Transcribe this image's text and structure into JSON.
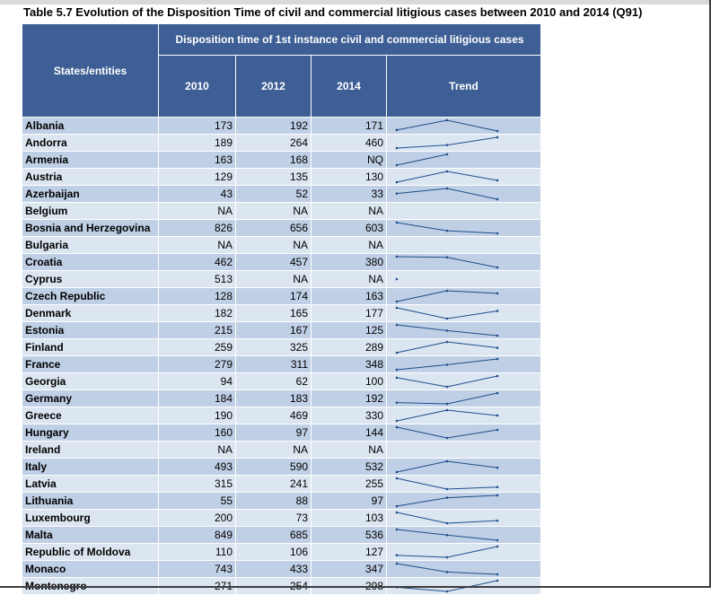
{
  "title": "Table 5.7 Evolution of the Disposition Time of civil and commercial litigious cases between 2010 and 2014 (Q91)",
  "header": {
    "states": "States/entities",
    "group": "Disposition time of 1st instance civil and commercial litigious cases",
    "years": [
      "2010",
      "2012",
      "2014"
    ],
    "trend": "Trend"
  },
  "colors": {
    "header_bg": "#3d5f95",
    "row_dark": "#bfcfe5",
    "row_light": "#dce6f1",
    "sparkline": "#1f4e8c"
  },
  "rows": [
    {
      "name": "Albania",
      "v2010": "173",
      "v2012": "192",
      "v2014": "171"
    },
    {
      "name": "Andorra",
      "v2010": "189",
      "v2012": "264",
      "v2014": "460"
    },
    {
      "name": "Armenia",
      "v2010": "163",
      "v2012": "168",
      "v2014": "NQ"
    },
    {
      "name": "Austria",
      "v2010": "129",
      "v2012": "135",
      "v2014": "130"
    },
    {
      "name": "Azerbaijan",
      "v2010": "43",
      "v2012": "52",
      "v2014": "33"
    },
    {
      "name": "Belgium",
      "v2010": "NA",
      "v2012": "NA",
      "v2014": "NA"
    },
    {
      "name": "Bosnia and Herzegovina",
      "v2010": "826",
      "v2012": "656",
      "v2014": "603"
    },
    {
      "name": "Bulgaria",
      "v2010": "NA",
      "v2012": "NA",
      "v2014": "NA"
    },
    {
      "name": "Croatia",
      "v2010": "462",
      "v2012": "457",
      "v2014": "380"
    },
    {
      "name": "Cyprus",
      "v2010": "513",
      "v2012": "NA",
      "v2014": "NA"
    },
    {
      "name": "Czech Republic",
      "v2010": "128",
      "v2012": "174",
      "v2014": "163"
    },
    {
      "name": "Denmark",
      "v2010": "182",
      "v2012": "165",
      "v2014": "177"
    },
    {
      "name": "Estonia",
      "v2010": "215",
      "v2012": "167",
      "v2014": "125"
    },
    {
      "name": "Finland",
      "v2010": "259",
      "v2012": "325",
      "v2014": "289"
    },
    {
      "name": "France",
      "v2010": "279",
      "v2012": "311",
      "v2014": "348"
    },
    {
      "name": "Georgia",
      "v2010": "94",
      "v2012": "62",
      "v2014": "100"
    },
    {
      "name": "Germany",
      "v2010": "184",
      "v2012": "183",
      "v2014": "192"
    },
    {
      "name": "Greece",
      "v2010": "190",
      "v2012": "469",
      "v2014": "330"
    },
    {
      "name": "Hungary",
      "v2010": "160",
      "v2012": "97",
      "v2014": "144"
    },
    {
      "name": "Ireland",
      "v2010": "NA",
      "v2012": "NA",
      "v2014": "NA"
    },
    {
      "name": "Italy",
      "v2010": "493",
      "v2012": "590",
      "v2014": "532"
    },
    {
      "name": "Latvia",
      "v2010": "315",
      "v2012": "241",
      "v2014": "255"
    },
    {
      "name": "Lithuania",
      "v2010": "55",
      "v2012": "88",
      "v2014": "97"
    },
    {
      "name": "Luxembourg",
      "v2010": "200",
      "v2012": "73",
      "v2014": "103"
    },
    {
      "name": "Malta",
      "v2010": "849",
      "v2012": "685",
      "v2014": "536"
    },
    {
      "name": "Republic of Moldova",
      "v2010": "110",
      "v2012": "106",
      "v2014": "127"
    },
    {
      "name": "Monaco",
      "v2010": "743",
      "v2012": "433",
      "v2014": "347"
    },
    {
      "name": "Montenegro",
      "v2010": "271",
      "v2012": "254",
      "v2014": "298"
    }
  ]
}
